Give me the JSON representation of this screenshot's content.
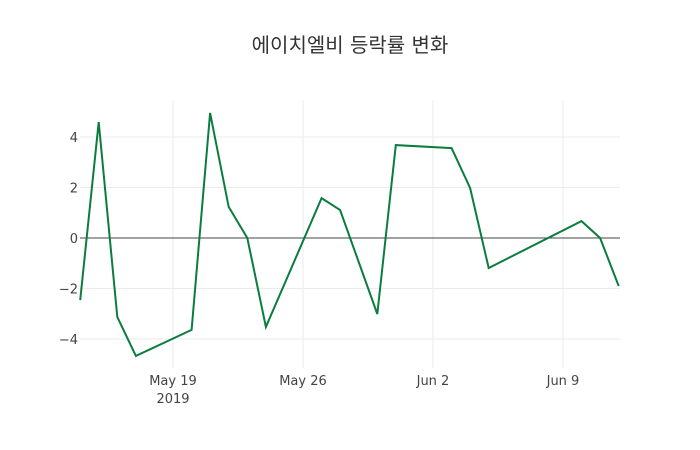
{
  "chart_data": {
    "type": "line",
    "title": "에이치엘비 등락률 변화",
    "xlabel": "",
    "ylabel": "",
    "x": [
      "2019-05-14",
      "2019-05-15",
      "2019-05-16",
      "2019-05-17",
      "2019-05-20",
      "2019-05-21",
      "2019-05-22",
      "2019-05-23",
      "2019-05-24",
      "2019-05-27",
      "2019-05-28",
      "2019-05-30",
      "2019-05-31",
      "2019-06-03",
      "2019-06-04",
      "2019-06-05",
      "2019-06-10",
      "2019-06-11",
      "2019-06-12"
    ],
    "series": [
      {
        "name": "등락률",
        "color": "#0a7d3e",
        "values": [
          -2.46,
          4.59,
          -3.13,
          -4.67,
          -3.64,
          4.95,
          1.23,
          0.0,
          -3.52,
          1.58,
          1.11,
          -3.01,
          3.68,
          3.56,
          1.98,
          -1.19,
          0.67,
          0.0,
          -1.9
        ]
      }
    ],
    "x_ticks": [
      {
        "date": "2019-05-19",
        "label": "May 19",
        "sublabel": "2019"
      },
      {
        "date": "2019-05-26",
        "label": "May 26",
        "sublabel": ""
      },
      {
        "date": "2019-06-02",
        "label": "Jun 2",
        "sublabel": ""
      },
      {
        "date": "2019-06-09",
        "label": "Jun 9",
        "sublabel": ""
      }
    ],
    "y_ticks": [
      -4,
      -2,
      0,
      2,
      4
    ],
    "y_tick_labels": [
      "−4",
      "−2",
      "0",
      "2",
      "4"
    ],
    "ylim": [
      -5.1,
      5.4
    ],
    "grid": true,
    "zero_line": true
  }
}
